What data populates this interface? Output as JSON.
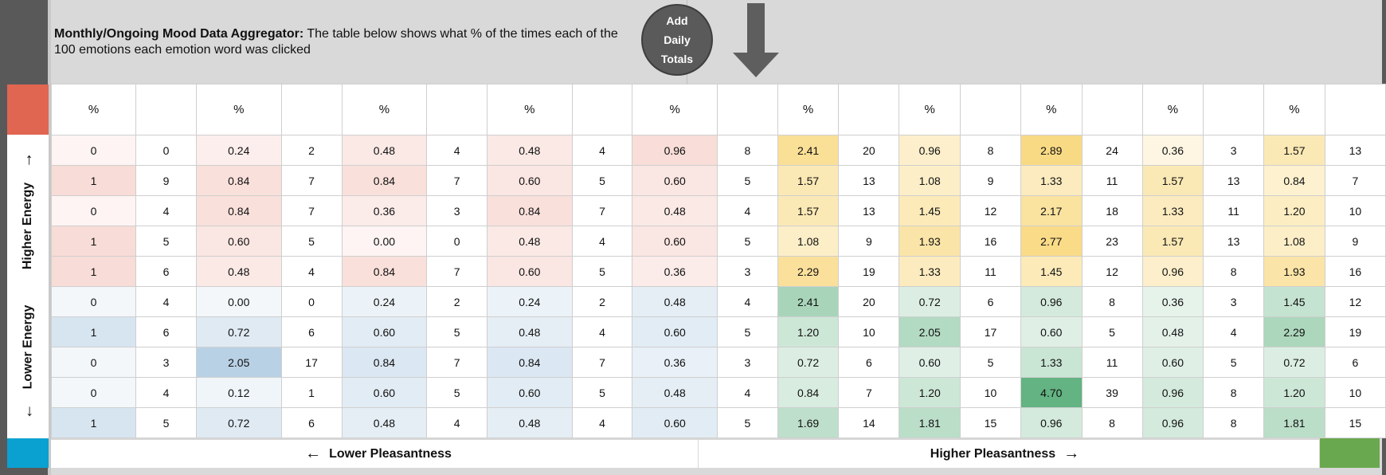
{
  "header": {
    "title_bold": "Monthly/Ongoing Mood Data Aggregator:",
    "title_rest": " The table below shows what % of the times each of the 100 emotions each emotion word was clicked"
  },
  "add_button": {
    "line1": "Add",
    "line2": "Daily",
    "line3": "Totals"
  },
  "labels": {
    "higher_energy": "Higher Energy",
    "lower_energy": "Lower Energy",
    "lower_pleasantness": "Lower Pleasantness",
    "higher_pleasantness": "Higher Pleasantness",
    "arrow_up": "↑",
    "arrow_down": "↓",
    "arrow_left": "←",
    "arrow_right": "→"
  },
  "colors": {
    "red_quadrant": "#e06651",
    "yellow_quadrant": "#f4b918",
    "blue_quadrant": "#0aa1d1",
    "green_quadrant": "#6aa84f",
    "header_bg": "#d9d9d9",
    "strip": "#595959"
  },
  "grid": {
    "header": [
      "%",
      "",
      "%",
      "",
      "%",
      "",
      "%",
      "",
      "%",
      "",
      "%",
      "",
      "%",
      "",
      "%",
      "",
      "%",
      "",
      "%",
      ""
    ],
    "rows": [
      [
        "0",
        "0",
        "0.24",
        "2",
        "0.48",
        "4",
        "0.48",
        "4",
        "0.96",
        "8",
        "2.41",
        "20",
        "0.96",
        "8",
        "2.89",
        "24",
        "0.36",
        "3",
        "1.57",
        "13"
      ],
      [
        "1",
        "9",
        "0.84",
        "7",
        "0.84",
        "7",
        "0.60",
        "5",
        "0.60",
        "5",
        "1.57",
        "13",
        "1.08",
        "9",
        "1.33",
        "11",
        "1.57",
        "13",
        "0.84",
        "7"
      ],
      [
        "0",
        "4",
        "0.84",
        "7",
        "0.36",
        "3",
        "0.84",
        "7",
        "0.48",
        "4",
        "1.57",
        "13",
        "1.45",
        "12",
        "2.17",
        "18",
        "1.33",
        "11",
        "1.20",
        "10"
      ],
      [
        "1",
        "5",
        "0.60",
        "5",
        "0.00",
        "0",
        "0.48",
        "4",
        "0.60",
        "5",
        "1.08",
        "9",
        "1.93",
        "16",
        "2.77",
        "23",
        "1.57",
        "13",
        "1.08",
        "9"
      ],
      [
        "1",
        "6",
        "0.48",
        "4",
        "0.84",
        "7",
        "0.60",
        "5",
        "0.36",
        "3",
        "2.29",
        "19",
        "1.33",
        "11",
        "1.45",
        "12",
        "0.96",
        "8",
        "1.93",
        "16"
      ],
      [
        "0",
        "4",
        "0.00",
        "0",
        "0.24",
        "2",
        "0.24",
        "2",
        "0.48",
        "4",
        "2.41",
        "20",
        "0.72",
        "6",
        "0.96",
        "8",
        "0.36",
        "3",
        "1.45",
        "12"
      ],
      [
        "1",
        "6",
        "0.72",
        "6",
        "0.60",
        "5",
        "0.48",
        "4",
        "0.60",
        "5",
        "1.20",
        "10",
        "2.05",
        "17",
        "0.60",
        "5",
        "0.48",
        "4",
        "2.29",
        "19"
      ],
      [
        "0",
        "3",
        "2.05",
        "17",
        "0.84",
        "7",
        "0.84",
        "7",
        "0.36",
        "3",
        "0.72",
        "6",
        "0.60",
        "5",
        "1.33",
        "11",
        "0.60",
        "5",
        "0.72",
        "6"
      ],
      [
        "0",
        "4",
        "0.12",
        "1",
        "0.60",
        "5",
        "0.60",
        "5",
        "0.48",
        "4",
        "0.84",
        "7",
        "1.20",
        "10",
        "4.70",
        "39",
        "0.96",
        "8",
        "1.20",
        "10"
      ],
      [
        "1",
        "5",
        "0.72",
        "6",
        "0.48",
        "4",
        "0.48",
        "4",
        "0.60",
        "5",
        "1.69",
        "14",
        "1.81",
        "15",
        "0.96",
        "8",
        "0.96",
        "8",
        "1.81",
        "15"
      ]
    ]
  }
}
